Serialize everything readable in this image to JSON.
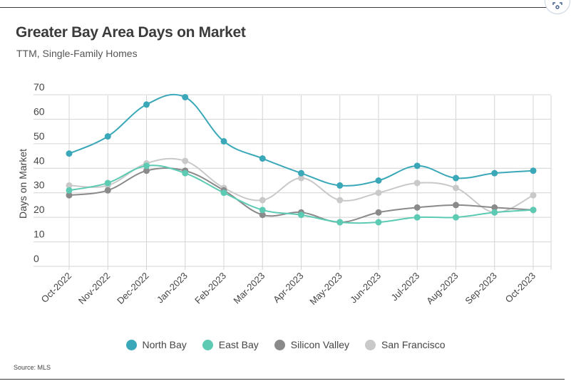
{
  "header": {
    "title": "Greater Bay Area Days on Market",
    "subtitle": "TTM, Single-Family Homes"
  },
  "footer": {
    "source": "Source: MLS"
  },
  "chart_data": {
    "type": "line",
    "title": "Greater Bay Area Days on Market",
    "subtitle": "TTM, Single-Family Homes",
    "xlabel": "",
    "ylabel": "Days on Market",
    "ylim": [
      0,
      70
    ],
    "yticks": [
      0,
      10,
      20,
      30,
      40,
      50,
      60,
      70
    ],
    "grid": true,
    "legend_position": "bottom",
    "categories": [
      "Oct-2022",
      "Nov-2022",
      "Dec-2022",
      "Jan-2023",
      "Feb-2023",
      "Mar-2023",
      "Apr-2023",
      "May-2023",
      "Jun-2023",
      "Jul-2023",
      "Aug-2023",
      "Sep-2023",
      "Oct-2023"
    ],
    "series": [
      {
        "name": "North Bay",
        "color": "#3aa8b8",
        "values": [
          46,
          53,
          66,
          69,
          51,
          44,
          38,
          33,
          35,
          41,
          36,
          38,
          39
        ]
      },
      {
        "name": "East Bay",
        "color": "#5dcbb3",
        "values": [
          31,
          34,
          41,
          38,
          30,
          23,
          21,
          18,
          18,
          20,
          20,
          22,
          23
        ]
      },
      {
        "name": "Silicon Valley",
        "color": "#8a8a8a",
        "values": [
          29,
          31,
          39,
          39,
          31,
          21,
          22,
          18,
          22,
          24,
          25,
          24,
          23
        ]
      },
      {
        "name": "San Francisco",
        "color": "#c9c9c9",
        "values": [
          33,
          33,
          42,
          43,
          32,
          27,
          36,
          27,
          30,
          34,
          32,
          22,
          29
        ]
      }
    ]
  }
}
